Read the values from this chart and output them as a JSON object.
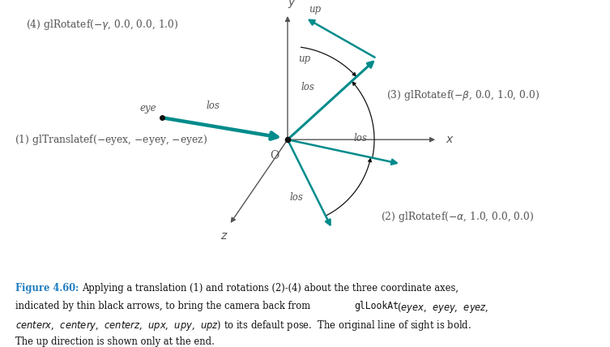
{
  "bg_color": "#ffffff",
  "teal": "#008B8B",
  "dark_gray": "#555555",
  "black": "#111111",
  "figure_label_color": "#1E7CC0",
  "figsize": [
    7.53,
    4.28
  ],
  "ox": 0.44,
  "oy": 0.5,
  "caption_label": "Figure 4.60:",
  "caption_line1_rest": "  Applying a translation (1) and rotations (2)-(4) about the three coordinate axes,",
  "caption_line2_pre": "indicated by thin black arrows, to bring the camera back from ",
  "caption_line2_mono": "glLookAt",
  "caption_line2_post": "(eyex,  eyey,  eyez,",
  "caption_line3": "centerx,  centery,  centerz,  upx,  upy,  upz) to its default pose.  The original line of sight is bold.",
  "caption_line4": "The up direction is shown only at the end."
}
